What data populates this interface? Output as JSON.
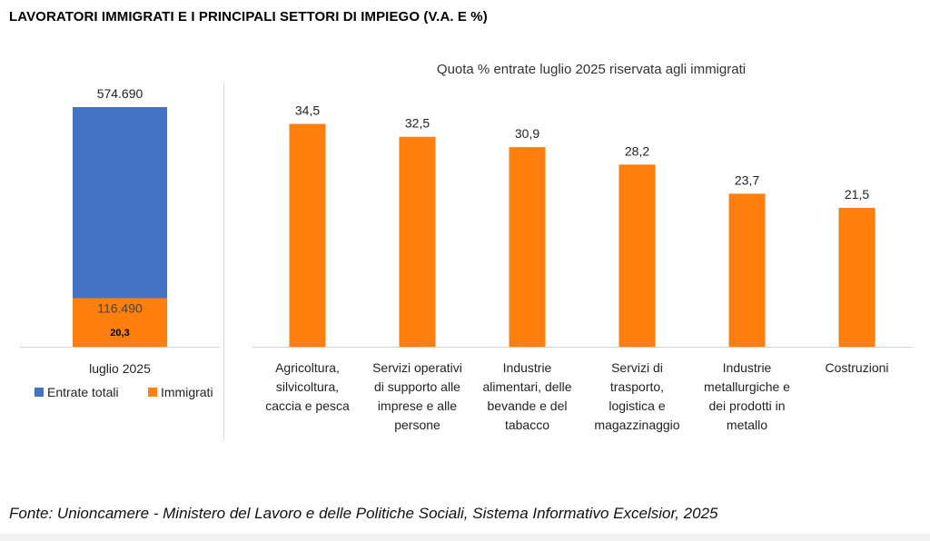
{
  "title": "LAVORATORI IMMIGRATI E I PRINCIPALI SETTORI DI IMPIEGO (V.A. E %)",
  "source": "Fonte: Unioncamere - Ministero del Lavoro e delle Politiche Sociali, Sistema Informativo Excelsior, 2025",
  "colors": {
    "blue": "#4472C4",
    "orange": "#FF7F0E"
  },
  "chart_data": [
    {
      "type": "bar",
      "stacked": true,
      "categories": [
        "luglio 2025"
      ],
      "series": [
        {
          "name": "Entrate totali",
          "values": [
            574690
          ],
          "label": "574.690",
          "color": "#4472C4"
        },
        {
          "name": "Immigrati",
          "values": [
            116490
          ],
          "label": "116.490",
          "color": "#FF7F0E"
        }
      ],
      "inner_label": "20,3",
      "legend": "bottom"
    },
    {
      "type": "bar",
      "title": "Quota % entrate luglio 2025 riservata agli immigrati",
      "categories": [
        [
          "Agricoltura,",
          "silvicoltura,",
          "caccia e pesca"
        ],
        [
          "Servizi operativi",
          "di supporto alle",
          "imprese e alle",
          "persone"
        ],
        [
          "Industrie",
          "alimentari, delle",
          "bevande e del",
          "tabacco"
        ],
        [
          "Servizi di",
          "trasporto,",
          "logistica e",
          "magazzinaggio"
        ],
        [
          "Industrie",
          "metallurgiche e",
          "dei prodotti in",
          "metallo"
        ],
        [
          "Costruzioni"
        ]
      ],
      "values": [
        34.5,
        32.5,
        30.9,
        28.2,
        23.7,
        21.5
      ],
      "value_labels": [
        "34,5",
        "32,5",
        "30,9",
        "28,2",
        "23,7",
        "21,5"
      ],
      "color": "#FF7F0E",
      "ylim": [
        0,
        40
      ],
      "grid": false
    }
  ]
}
